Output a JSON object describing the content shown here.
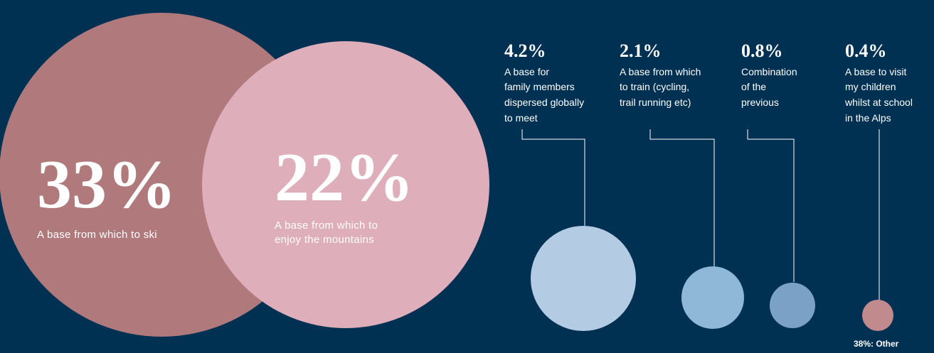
{
  "chart_data": {
    "type": "bubble",
    "major": [
      {
        "value": "33%",
        "label": "A base from which to ski",
        "color": "#B07A7D"
      },
      {
        "value": "22%",
        "label_lines": [
          "A base from which to",
          "enjoy the mountains"
        ],
        "color": "#DEAEBA"
      }
    ],
    "minor": [
      {
        "value": "4.2%",
        "label_lines": [
          "A base for",
          "family members",
          "dispersed globally",
          "to meet"
        ],
        "color": "#B3CCE3"
      },
      {
        "value": "2.1%",
        "label_lines": [
          "A base from which",
          "to train (cycling,",
          "trail running etc)"
        ],
        "color": "#8FB8D8"
      },
      {
        "value": "0.8%",
        "label_lines": [
          "Combination",
          "of the",
          "previous"
        ],
        "color": "#7CA1C6"
      },
      {
        "value": "0.4%",
        "label_lines": [
          "A base to visit",
          "my children",
          "whilst at school",
          "in the Alps"
        ],
        "color": "#C18B8E"
      }
    ],
    "other": {
      "label": "38%: Other"
    }
  }
}
